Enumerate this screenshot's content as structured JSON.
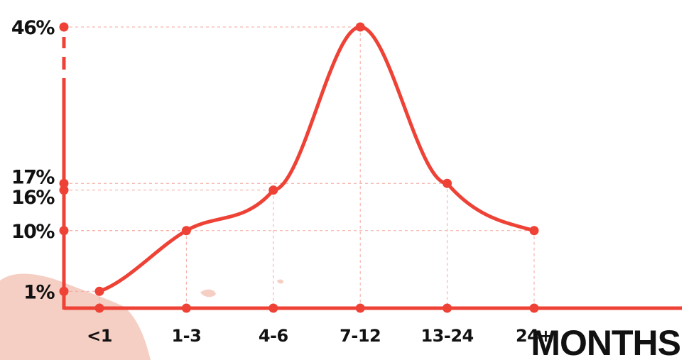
{
  "chart_data": {
    "type": "line",
    "categories": [
      "<1",
      "1-3",
      "4-6",
      "7-12",
      "13-24",
      "24+"
    ],
    "values": [
      1,
      10,
      16,
      46,
      17,
      10
    ],
    "y_tick_labels": [
      "1%",
      "10%",
      "16%",
      "17%",
      "46%"
    ],
    "y_tick_values": [
      1,
      10,
      16,
      17,
      46
    ],
    "x_unit_label": "MONTHS",
    "y_axis_break": true,
    "grid": "dashed guide lines to data points",
    "colors": {
      "line": "#ee4236",
      "guide": "#f4a59c",
      "text": "#111111",
      "splash": "#f6cfc4"
    }
  }
}
